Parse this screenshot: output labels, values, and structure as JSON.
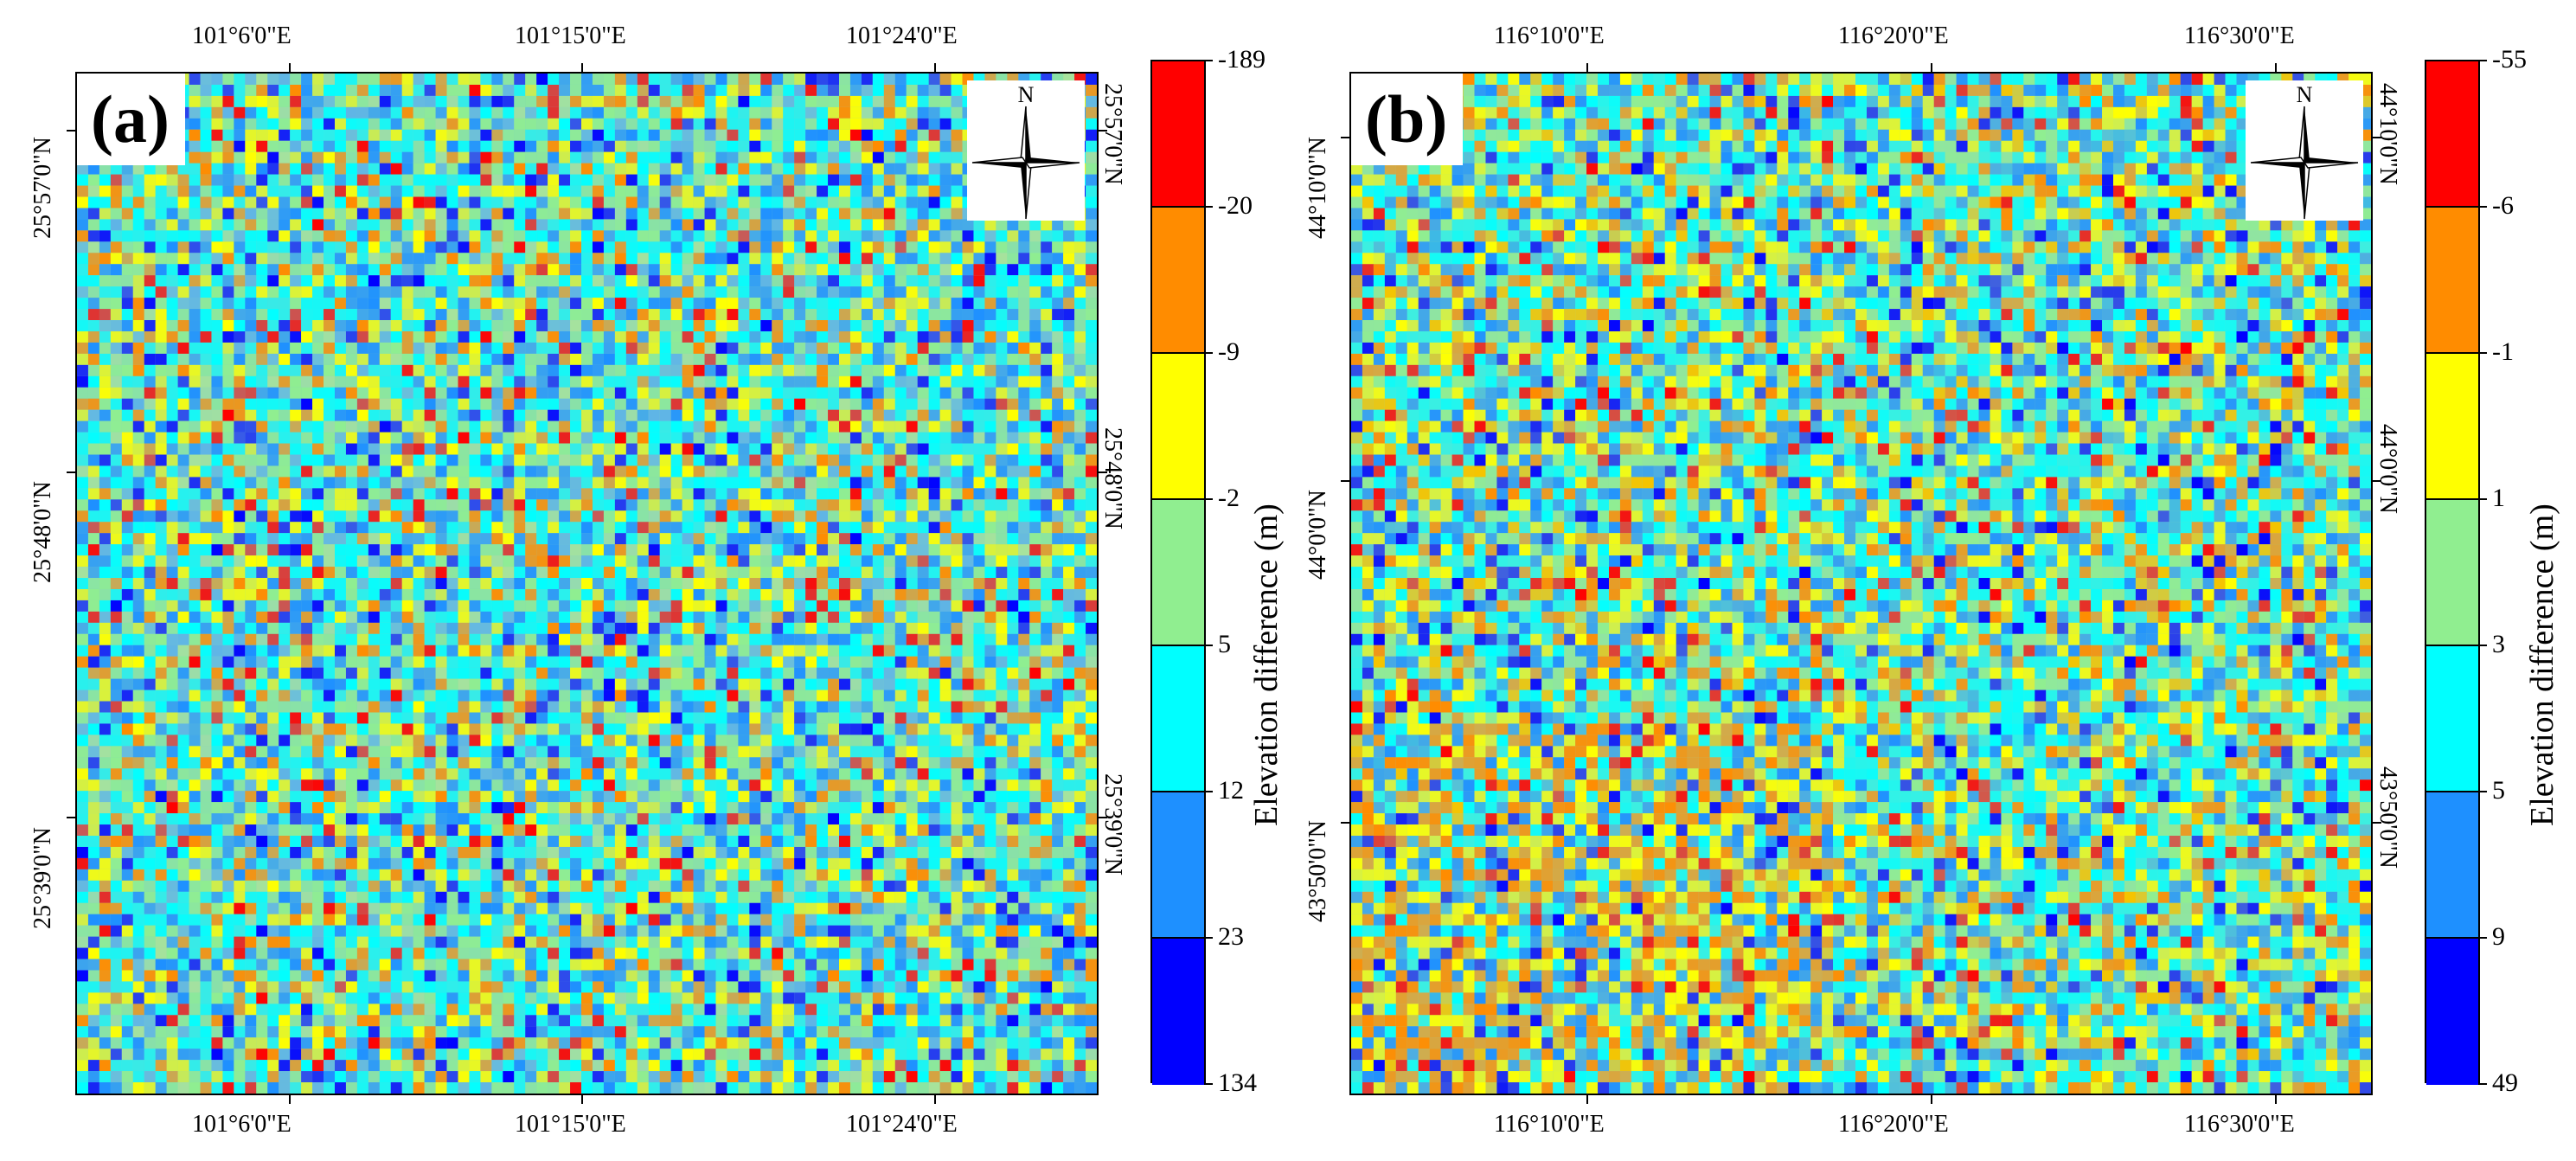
{
  "panels": [
    {
      "label": "(a)",
      "north_label": "N",
      "x_ticks": [
        "101°6'0\"E",
        "101°15'0\"E",
        "101°24'0\"E"
      ],
      "y_ticks": [
        "25°57'0\"N",
        "25°48'0\"N",
        "25°39'0\"N"
      ],
      "colorbar": {
        "title": "Elevation difference (m)",
        "labels": [
          "-189",
          "-20",
          "-9",
          "-2",
          "5",
          "12",
          "23",
          "134"
        ],
        "colors": [
          "#ff0000",
          "#ff8c00",
          "#ffff00",
          "#90ee90",
          "#00ffff",
          "#1e90ff",
          "#0000ff"
        ]
      },
      "map_colors": {
        "base": "#7fd0c8",
        "palette": [
          "#ff0000",
          "#ff8c00",
          "#ffff00",
          "#90ee90",
          "#00ffff",
          "#1e90ff",
          "#0000ff",
          "#5fb4e6",
          "#a8e39a"
        ]
      }
    },
    {
      "label": "(b)",
      "north_label": "N",
      "x_ticks": [
        "116°10'0\"E",
        "116°20'0\"E",
        "116°30'0\"E"
      ],
      "y_ticks": [
        "44°10'0\"N",
        "44°0'0\"N",
        "43°50'0\"N"
      ],
      "colorbar": {
        "title": "Elevation difference (m)",
        "labels": [
          "-55",
          "-6",
          "-1",
          "1",
          "3",
          "5",
          "9",
          "49"
        ],
        "colors": [
          "#ff0000",
          "#ff8c00",
          "#ffff00",
          "#90ee90",
          "#00ffff",
          "#1e90ff",
          "#0000ff"
        ]
      },
      "map_colors": {
        "base": "#8fd8b8",
        "palette": [
          "#ff0000",
          "#ff8c00",
          "#ffff00",
          "#90ee90",
          "#00ffff",
          "#1e90ff",
          "#0000ff",
          "#f5c400",
          "#37b6e8"
        ]
      }
    }
  ]
}
